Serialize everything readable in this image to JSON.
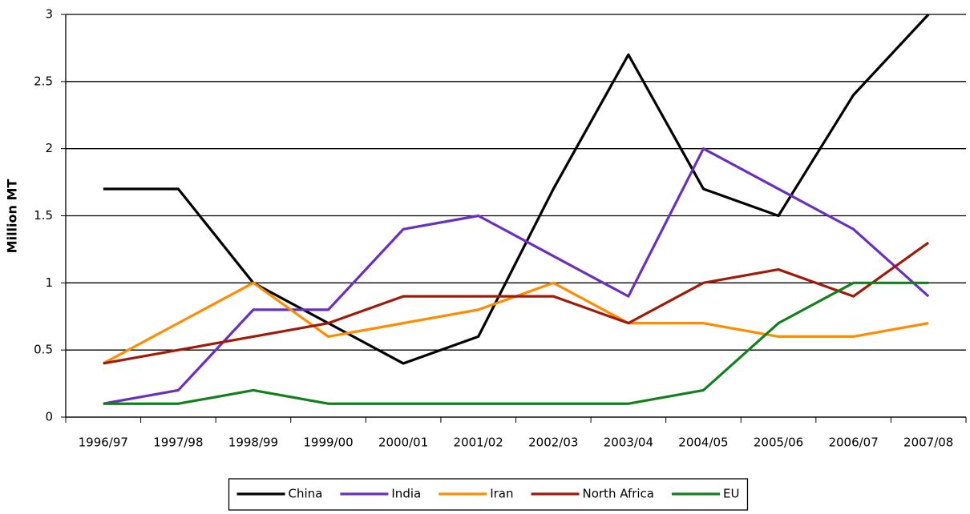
{
  "chart_data": {
    "type": "line",
    "y_label": "Million MT",
    "categories": [
      "1996/97",
      "1997/98",
      "1998/99",
      "1999/00",
      "2000/01",
      "2001/02",
      "2002/03",
      "2003/04",
      "2004/05",
      "2005/06",
      "2006/07",
      "2007/08"
    ],
    "series": [
      {
        "name": "China",
        "color": "#000000",
        "values": [
          1.7,
          1.7,
          1.0,
          0.7,
          0.4,
          0.6,
          1.7,
          2.7,
          1.7,
          1.5,
          2.4,
          3.0
        ]
      },
      {
        "name": "India",
        "color": "#6a2fc0",
        "values": [
          0.1,
          0.2,
          0.8,
          0.8,
          1.4,
          1.5,
          1.2,
          0.9,
          2.0,
          1.7,
          1.4,
          0.9
        ]
      },
      {
        "name": "Iran",
        "color": "#ff8c00",
        "values": [
          0.4,
          0.7,
          1.0,
          0.6,
          0.7,
          0.8,
          1.0,
          0.7,
          0.7,
          0.6,
          0.6,
          0.7
        ]
      },
      {
        "name": "North Africa",
        "color": "#a01a0a",
        "values": [
          0.4,
          0.5,
          0.6,
          0.7,
          0.9,
          0.9,
          0.9,
          0.7,
          1.0,
          1.1,
          0.9,
          1.3
        ]
      },
      {
        "name": "EU",
        "color": "#13801e",
        "values": [
          0.1,
          0.1,
          0.2,
          0.1,
          0.1,
          0.1,
          0.1,
          0.1,
          0.2,
          0.7,
          1.0,
          1.0
        ]
      }
    ],
    "ylim": [
      0,
      3
    ],
    "yticks": [
      0,
      0.5,
      1,
      1.5,
      2,
      2.5,
      3
    ],
    "grid": true,
    "legend": "bottom"
  }
}
